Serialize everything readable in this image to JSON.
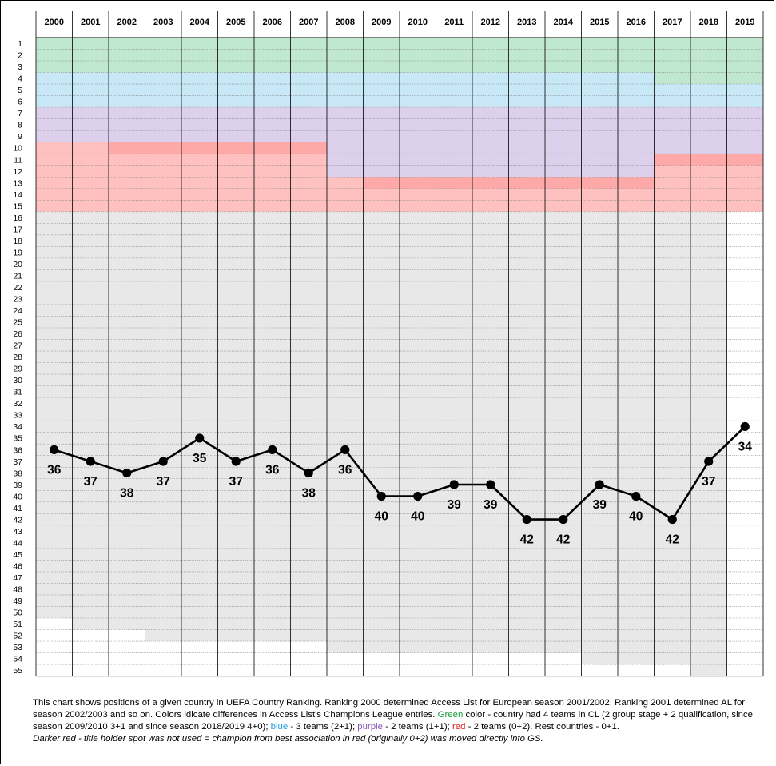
{
  "chart_data": {
    "type": "line",
    "title": "",
    "xlabel": "",
    "ylabel": "",
    "x": [
      "2000",
      "2001",
      "2002",
      "2003",
      "2004",
      "2005",
      "2006",
      "2007",
      "2008",
      "2009",
      "2010",
      "2011",
      "2012",
      "2013",
      "2014",
      "2015",
      "2016",
      "2017",
      "2018",
      "2019"
    ],
    "y_ticks": [
      "1",
      "2",
      "3",
      "4",
      "5",
      "6",
      "7",
      "8",
      "9",
      "10",
      "11",
      "12",
      "13",
      "14",
      "15",
      "16",
      "17",
      "18",
      "19",
      "20",
      "21",
      "22",
      "23",
      "24",
      "25",
      "26",
      "27",
      "28",
      "29",
      "30",
      "31",
      "32",
      "33",
      "34",
      "35",
      "36",
      "37",
      "38",
      "39",
      "40",
      "41",
      "42",
      "43",
      "44",
      "45",
      "46",
      "47",
      "48",
      "49",
      "50",
      "51",
      "52",
      "53",
      "54",
      "55"
    ],
    "ylim": [
      1,
      55
    ],
    "y_inverted": true,
    "grid": true,
    "series": [
      {
        "values": [
          36,
          37,
          38,
          37,
          35,
          37,
          36,
          38,
          36,
          40,
          40,
          39,
          39,
          42,
          42,
          39,
          40,
          42,
          37,
          34
        ],
        "color": "#000000"
      }
    ],
    "data_labels": [
      "36",
      "37",
      "38",
      "37",
      "35",
      "37",
      "36",
      "38",
      "36",
      "40",
      "40",
      "39",
      "39",
      "42",
      "42",
      "39",
      "40",
      "42",
      "37",
      "34"
    ],
    "colors": {
      "green": "#c0e8d0",
      "blue": "#c8e8f8",
      "purple": "#dcd0ec",
      "red": "#ffc0c0",
      "dark_red": "#ffa8a8",
      "grey": "#e8e8e8",
      "white": "#ffffff"
    },
    "bands": [
      {
        "from": "2000",
        "to": "2016",
        "start": 1,
        "end": 3,
        "color": "green"
      },
      {
        "from": "2017",
        "to": "2019",
        "start": 1,
        "end": 4,
        "color": "green"
      },
      {
        "from": "2000",
        "to": "2016",
        "start": 4,
        "end": 6,
        "color": "blue"
      },
      {
        "from": "2017",
        "to": "2019",
        "start": 5,
        "end": 6,
        "color": "blue"
      },
      {
        "from": "2000",
        "to": "2007",
        "start": 7,
        "end": 9,
        "color": "purple"
      },
      {
        "from": "2008",
        "to": "2016",
        "start": 7,
        "end": 12,
        "color": "purple"
      },
      {
        "from": "2017",
        "to": "2019",
        "start": 7,
        "end": 10,
        "color": "purple"
      },
      {
        "from": "2000",
        "to": "2000",
        "start": 10,
        "end": 15,
        "color": "red"
      },
      {
        "from": "2001",
        "to": "2001",
        "start": 10,
        "end": 15,
        "color": "red"
      },
      {
        "from": "2002",
        "to": "2007",
        "start": 10,
        "end": 10,
        "color": "dark_red"
      },
      {
        "from": "2002",
        "to": "2007",
        "start": 11,
        "end": 15,
        "color": "red"
      },
      {
        "from": "2008",
        "to": "2008",
        "start": 13,
        "end": 15,
        "color": "red"
      },
      {
        "from": "2009",
        "to": "2016",
        "start": 13,
        "end": 13,
        "color": "dark_red"
      },
      {
        "from": "2009",
        "to": "2016",
        "start": 14,
        "end": 15,
        "color": "red"
      },
      {
        "from": "2017",
        "to": "2019",
        "start": 11,
        "end": 11,
        "color": "dark_red"
      },
      {
        "from": "2017",
        "to": "2019",
        "start": 12,
        "end": 15,
        "color": "red"
      },
      {
        "from": "2000",
        "to": "2000",
        "start": 16,
        "end": 50,
        "color": "grey"
      },
      {
        "from": "2000",
        "to": "2000",
        "start": 51,
        "end": 55,
        "color": "white"
      },
      {
        "from": "2001",
        "to": "2002",
        "start": 16,
        "end": 51,
        "color": "grey"
      },
      {
        "from": "2001",
        "to": "2002",
        "start": 52,
        "end": 55,
        "color": "white"
      },
      {
        "from": "2003",
        "to": "2007",
        "start": 16,
        "end": 52,
        "color": "grey"
      },
      {
        "from": "2003",
        "to": "2007",
        "start": 53,
        "end": 55,
        "color": "white"
      },
      {
        "from": "2008",
        "to": "2014",
        "start": 16,
        "end": 53,
        "color": "grey"
      },
      {
        "from": "2008",
        "to": "2014",
        "start": 54,
        "end": 55,
        "color": "white"
      },
      {
        "from": "2015",
        "to": "2017",
        "start": 16,
        "end": 54,
        "color": "grey"
      },
      {
        "from": "2015",
        "to": "2017",
        "start": 55,
        "end": 55,
        "color": "white"
      },
      {
        "from": "2018",
        "to": "2018",
        "start": 16,
        "end": 55,
        "color": "grey"
      },
      {
        "from": "2019",
        "to": "2019",
        "start": 16,
        "end": 55,
        "color": "white"
      }
    ]
  },
  "caption": {
    "line1": "This chart shows positions of a given country in UEFA Country Ranking. Ranking 2000 determined Access List for European season 2001/2002, Ranking 2001 determined AL for season 2002/2003 and so on. Colors idicate differences in Access List's Champions League entries.",
    "green_word": "Green",
    "green_text": "color - country had 4 teams in CL (2 group stage + 2 qualification, since season 2009/2010 3+1 and since season 2018/2019 4+0);",
    "blue_word": "blue",
    "blue_text": "- 3 teams (2+1);",
    "purple_word": "purple",
    "purple_text": "- 2 teams (1+1);",
    "red_word": "red",
    "red_text": "- 2 teams (0+2). Rest countries - 0+1.",
    "dark_red_note": "Darker red - title holder spot was not used = champion from best association in red (originally 0+2) was moved directly into GS."
  }
}
